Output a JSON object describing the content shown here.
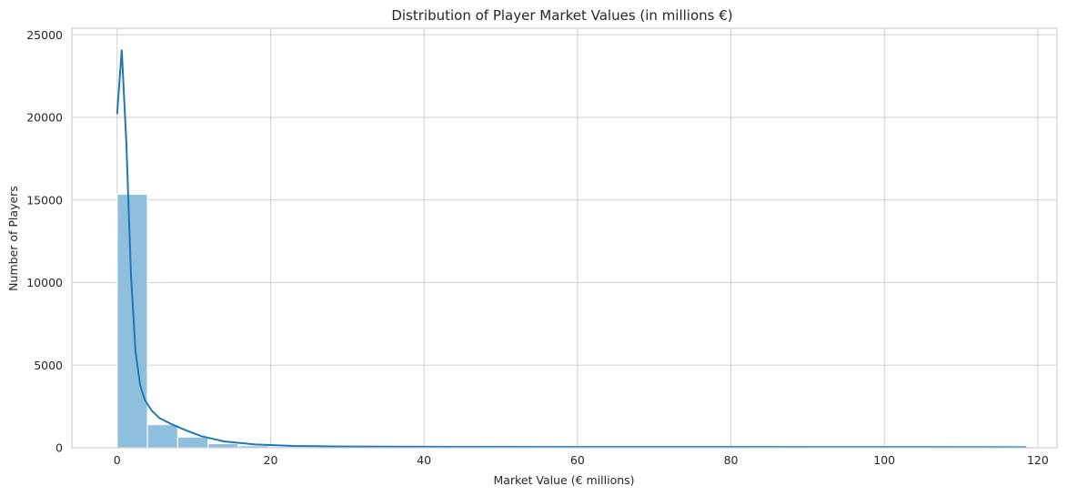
{
  "chart_data": {
    "type": "bar",
    "subtype": "histogram-with-kde",
    "title": "Distribution of Player Market Values (in millions €)",
    "xlabel": "Market Value (€ millions)",
    "ylabel": "Number of Players",
    "xlim": [
      -5.9,
      122.5
    ],
    "ylim": [
      0,
      25400
    ],
    "xticks": [
      0,
      20,
      40,
      60,
      80,
      100,
      120
    ],
    "yticks": [
      0,
      5000,
      10000,
      15000,
      20000,
      25000
    ],
    "grid": true,
    "bin_width": 3.95,
    "bins": [
      {
        "start": 0.0,
        "end": 3.95,
        "count": 15350
      },
      {
        "start": 3.95,
        "end": 7.9,
        "count": 1400
      },
      {
        "start": 7.9,
        "end": 11.85,
        "count": 650
      },
      {
        "start": 11.85,
        "end": 15.8,
        "count": 250
      },
      {
        "start": 15.8,
        "end": 19.75,
        "count": 130
      },
      {
        "start": 19.75,
        "end": 23.7,
        "count": 70
      },
      {
        "start": 23.7,
        "end": 27.65,
        "count": 40
      },
      {
        "start": 27.65,
        "end": 31.6,
        "count": 25
      },
      {
        "start": 31.6,
        "end": 35.55,
        "count": 15
      },
      {
        "start": 35.55,
        "end": 39.5,
        "count": 10
      },
      {
        "start": 39.5,
        "end": 43.45,
        "count": 8
      },
      {
        "start": 43.45,
        "end": 47.4,
        "count": 6
      },
      {
        "start": 47.4,
        "end": 51.35,
        "count": 5
      },
      {
        "start": 51.35,
        "end": 55.3,
        "count": 4
      },
      {
        "start": 55.3,
        "end": 59.25,
        "count": 3
      },
      {
        "start": 59.25,
        "end": 63.2,
        "count": 3
      },
      {
        "start": 63.2,
        "end": 67.15,
        "count": 2
      },
      {
        "start": 67.15,
        "end": 71.1,
        "count": 2
      },
      {
        "start": 71.1,
        "end": 75.05,
        "count": 2
      },
      {
        "start": 75.05,
        "end": 79.0,
        "count": 1
      },
      {
        "start": 79.0,
        "end": 82.95,
        "count": 1
      },
      {
        "start": 82.95,
        "end": 86.9,
        "count": 1
      },
      {
        "start": 86.9,
        "end": 90.85,
        "count": 1
      },
      {
        "start": 90.85,
        "end": 94.8,
        "count": 1
      },
      {
        "start": 94.8,
        "end": 98.75,
        "count": 1
      },
      {
        "start": 98.75,
        "end": 102.7,
        "count": 1
      },
      {
        "start": 102.7,
        "end": 106.65,
        "count": 1
      },
      {
        "start": 106.65,
        "end": 110.6,
        "count": 1
      },
      {
        "start": 110.6,
        "end": 114.55,
        "count": 1
      },
      {
        "start": 114.55,
        "end": 118.5,
        "count": 1
      }
    ],
    "kde": {
      "x": [
        0,
        0.6,
        1.2,
        1.8,
        2.4,
        3.0,
        3.6,
        4.5,
        5.5,
        7.0,
        9.0,
        11.0,
        14.0,
        18.0,
        23.0,
        30.0,
        40.0,
        60.0,
        80.0,
        100.0,
        118.5
      ],
      "y": [
        20200,
        24100,
        18500,
        10500,
        5800,
        3800,
        2900,
        2250,
        1800,
        1450,
        1050,
        700,
        380,
        200,
        110,
        75,
        60,
        50,
        45,
        40,
        35
      ]
    },
    "colors": {
      "bar_fill": "#8ebfdf",
      "kde_line": "#1f77b4"
    }
  }
}
